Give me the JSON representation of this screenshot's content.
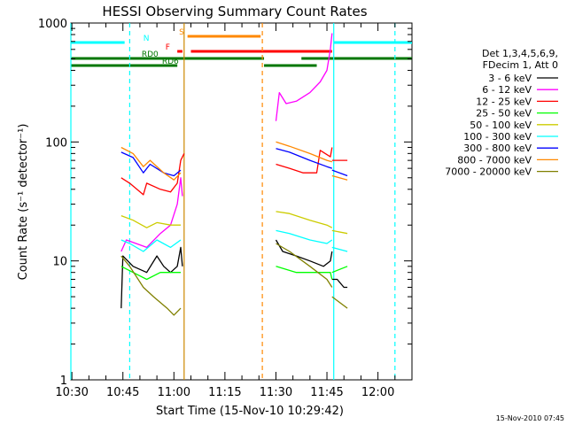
{
  "chart_data": {
    "type": "line",
    "title": "HESSI Observing Summary Count Rates",
    "xlabel": "Start Time (15-Nov-10 10:29:42)",
    "ylabel": "Count Rate (s⁻¹ detector⁻¹)",
    "y_scale": "log",
    "ylim": [
      1,
      1000
    ],
    "xlim": [
      "10:29:42",
      "12:10:00"
    ],
    "x_ticks": [
      "10:30",
      "10:45",
      "11:00",
      "11:15",
      "11:30",
      "11:45",
      "12:00"
    ],
    "y_ticks": [
      "1",
      "10",
      "100",
      "1000"
    ],
    "grid": false,
    "legend_position": "right",
    "legend_header": [
      "Det 1,3,4,5,6,9,",
      "FDecim 1, Att 0"
    ],
    "timestamp": "15-Nov-2010 07:45",
    "series": [
      {
        "name": "3 - 6 keV",
        "color": "#000000",
        "segments": [
          [
            [
              "10:44:30",
              4
            ],
            [
              "10:45:00",
              11
            ],
            [
              "10:48:00",
              9
            ],
            [
              "10:52:00",
              8
            ],
            [
              "10:55:00",
              11
            ],
            [
              "10:57:00",
              9
            ],
            [
              "10:59:00",
              8
            ],
            [
              "11:01:00",
              9
            ],
            [
              "11:02:00",
              13
            ],
            [
              "11:02:30",
              9
            ]
          ],
          [
            [
              "11:30:00",
              15
            ],
            [
              "11:32:00",
              12
            ],
            [
              "11:36:00",
              11
            ],
            [
              "11:40:00",
              10
            ],
            [
              "11:44:00",
              9
            ],
            [
              "11:46:00",
              10
            ],
            [
              "11:46:30",
              12
            ]
          ],
          [
            [
              "11:46:30",
              7
            ],
            [
              "11:48:00",
              7
            ],
            [
              "11:50:00",
              6
            ],
            [
              "11:51:00",
              6
            ]
          ]
        ]
      },
      {
        "name": "6 - 12 keV",
        "color": "#ff00ff",
        "segments": [
          [
            [
              "10:44:30",
              12
            ],
            [
              "10:46:00",
              15
            ],
            [
              "10:52:00",
              13
            ],
            [
              "10:56:00",
              17
            ],
            [
              "10:59:00",
              20
            ],
            [
              "11:01:00",
              30
            ],
            [
              "11:02:00",
              50
            ],
            [
              "11:02:30",
              35
            ]
          ],
          [
            [
              "11:30:00",
              150
            ],
            [
              "11:31:00",
              260
            ],
            [
              "11:33:00",
              210
            ],
            [
              "11:36:00",
              220
            ],
            [
              "11:40:00",
              260
            ],
            [
              "11:43:00",
              320
            ],
            [
              "11:45:00",
              400
            ],
            [
              "11:46:00",
              600
            ],
            [
              "11:46:30",
              820
            ]
          ]
        ]
      },
      {
        "name": "12 - 25 keV",
        "color": "#ff0000",
        "segments": [
          [
            [
              "10:44:30",
              50
            ],
            [
              "10:47:00",
              45
            ],
            [
              "10:51:00",
              36
            ],
            [
              "10:52:00",
              45
            ],
            [
              "10:56:00",
              40
            ],
            [
              "10:59:00",
              38
            ],
            [
              "11:01:00",
              45
            ],
            [
              "11:02:00",
              70
            ],
            [
              "11:03:00",
              80
            ]
          ],
          [
            [
              "11:30:00",
              65
            ],
            [
              "11:34:00",
              60
            ],
            [
              "11:38:00",
              55
            ],
            [
              "11:42:00",
              55
            ],
            [
              "11:43:00",
              85
            ],
            [
              "11:46:00",
              75
            ],
            [
              "11:46:30",
              90
            ]
          ],
          [
            [
              "11:46:30",
              70
            ],
            [
              "11:51:00",
              70
            ]
          ]
        ]
      },
      {
        "name": "25 - 50 keV",
        "color": "#00ff00",
        "segments": [
          [
            [
              "10:44:30",
              9
            ],
            [
              "10:48:00",
              8
            ],
            [
              "10:52:00",
              7
            ],
            [
              "10:56:00",
              8
            ],
            [
              "11:00:00",
              8
            ],
            [
              "11:02:00",
              8
            ]
          ],
          [
            [
              "11:30:00",
              9
            ],
            [
              "11:36:00",
              8
            ],
            [
              "11:42:00",
              8
            ],
            [
              "11:46:00",
              8
            ],
            [
              "11:46:30",
              7
            ]
          ],
          [
            [
              "11:46:30",
              8
            ],
            [
              "11:51:00",
              9
            ]
          ]
        ]
      },
      {
        "name": "50 - 100 keV",
        "color": "#cccc00",
        "segments": [
          [
            [
              "10:44:30",
              24
            ],
            [
              "10:48:00",
              22
            ],
            [
              "10:52:00",
              19
            ],
            [
              "10:55:00",
              21
            ],
            [
              "10:59:00",
              20
            ],
            [
              "11:02:00",
              20
            ]
          ],
          [
            [
              "11:30:00",
              26
            ],
            [
              "11:34:00",
              25
            ],
            [
              "11:40:00",
              22
            ],
            [
              "11:45:00",
              20
            ],
            [
              "11:46:30",
              19
            ]
          ],
          [
            [
              "11:46:30",
              18
            ],
            [
              "11:51:00",
              17
            ]
          ]
        ]
      },
      {
        "name": "100 - 300 keV",
        "color": "#00ffff",
        "segments": [
          [
            [
              "10:44:30",
              15
            ],
            [
              "10:47:00",
              14
            ],
            [
              "10:51:00",
              12
            ],
            [
              "10:55:00",
              15
            ],
            [
              "10:59:00",
              13
            ],
            [
              "11:02:00",
              15
            ]
          ],
          [
            [
              "11:30:00",
              18
            ],
            [
              "11:34:00",
              17
            ],
            [
              "11:40:00",
              15
            ],
            [
              "11:45:00",
              14
            ],
            [
              "11:46:30",
              15
            ]
          ],
          [
            [
              "11:46:30",
              13
            ],
            [
              "11:51:00",
              12
            ]
          ]
        ]
      },
      {
        "name": "300 - 800 keV",
        "color": "#0000ff",
        "segments": [
          [
            [
              "10:44:30",
              82
            ],
            [
              "10:48:00",
              74
            ],
            [
              "10:51:00",
              55
            ],
            [
              "10:53:00",
              65
            ],
            [
              "10:57:00",
              55
            ],
            [
              "11:00:00",
              52
            ],
            [
              "11:02:00",
              58
            ]
          ],
          [
            [
              "11:30:00",
              88
            ],
            [
              "11:34:00",
              82
            ],
            [
              "11:40:00",
              70
            ],
            [
              "11:45:00",
              62
            ],
            [
              "11:46:30",
              60
            ]
          ],
          [
            [
              "11:46:30",
              58
            ],
            [
              "11:51:00",
              52
            ]
          ]
        ]
      },
      {
        "name": "800 - 7000 keV",
        "color": "#ff8800",
        "segments": [
          [
            [
              "10:44:30",
              90
            ],
            [
              "10:48:00",
              80
            ],
            [
              "10:51:00",
              62
            ],
            [
              "10:53:00",
              70
            ],
            [
              "10:57:00",
              55
            ],
            [
              "11:00:00",
              48
            ],
            [
              "11:02:00",
              55
            ]
          ],
          [
            [
              "11:30:00",
              100
            ],
            [
              "11:34:00",
              92
            ],
            [
              "11:40:00",
              80
            ],
            [
              "11:45:00",
              70
            ],
            [
              "11:46:30",
              68
            ]
          ],
          [
            [
              "11:46:30",
              52
            ],
            [
              "11:51:00",
              48
            ]
          ]
        ]
      },
      {
        "name": "7000 - 20000 keV",
        "color": "#808000",
        "segments": [
          [
            [
              "10:44:30",
              11
            ],
            [
              "10:47:00",
              9
            ],
            [
              "10:51:00",
              6
            ],
            [
              "10:54:00",
              5
            ],
            [
              "10:58:00",
              4
            ],
            [
              "11:00:00",
              3.5
            ],
            [
              "11:02:00",
              4
            ]
          ],
          [
            [
              "11:30:00",
              14
            ],
            [
              "11:34:00",
              12
            ],
            [
              "11:40:00",
              9
            ],
            [
              "11:45:00",
              7
            ],
            [
              "11:46:30",
              6
            ]
          ],
          [
            [
              "11:46:30",
              5
            ],
            [
              "11:51:00",
              4
            ]
          ]
        ]
      }
    ],
    "state_flags": [
      {
        "label": "N",
        "color": "#00ffff",
        "segments": [
          [
            "10:29:42",
            "10:45:30"
          ],
          [
            "11:47:00",
            "12:10:00"
          ]
        ]
      },
      {
        "label": "S",
        "color": "#ff8800",
        "segments": [
          [
            "11:04:00",
            "11:25:30"
          ]
        ]
      },
      {
        "label": "F",
        "color": "#ff0000",
        "segments": [
          [
            "11:01:00",
            "11:02:30"
          ],
          [
            "11:05:00",
            "11:46:30"
          ]
        ]
      },
      {
        "label": "RD0",
        "color": "#007700",
        "segments": [
          [
            "10:29:42",
            "11:26:30"
          ],
          [
            "11:37:30",
            "12:10:00"
          ]
        ]
      },
      {
        "label": "RD6",
        "color": "#007700",
        "segments": [
          [
            "10:29:42",
            "11:01:00"
          ],
          [
            "11:26:30",
            "11:42:00"
          ]
        ]
      }
    ],
    "vertical_markers": [
      {
        "time": "10:29:42",
        "color": "#00ffff",
        "style": "solid"
      },
      {
        "time": "10:47:00",
        "color": "#00ffff",
        "style": "dashed"
      },
      {
        "time": "11:03:00",
        "color": "#cc8800",
        "style": "solid"
      },
      {
        "time": "11:26:00",
        "color": "#ff8800",
        "style": "dashed"
      },
      {
        "time": "11:47:00",
        "color": "#00ffff",
        "style": "solid"
      },
      {
        "time": "12:05:00",
        "color": "#00ffff",
        "style": "dashed"
      }
    ]
  }
}
